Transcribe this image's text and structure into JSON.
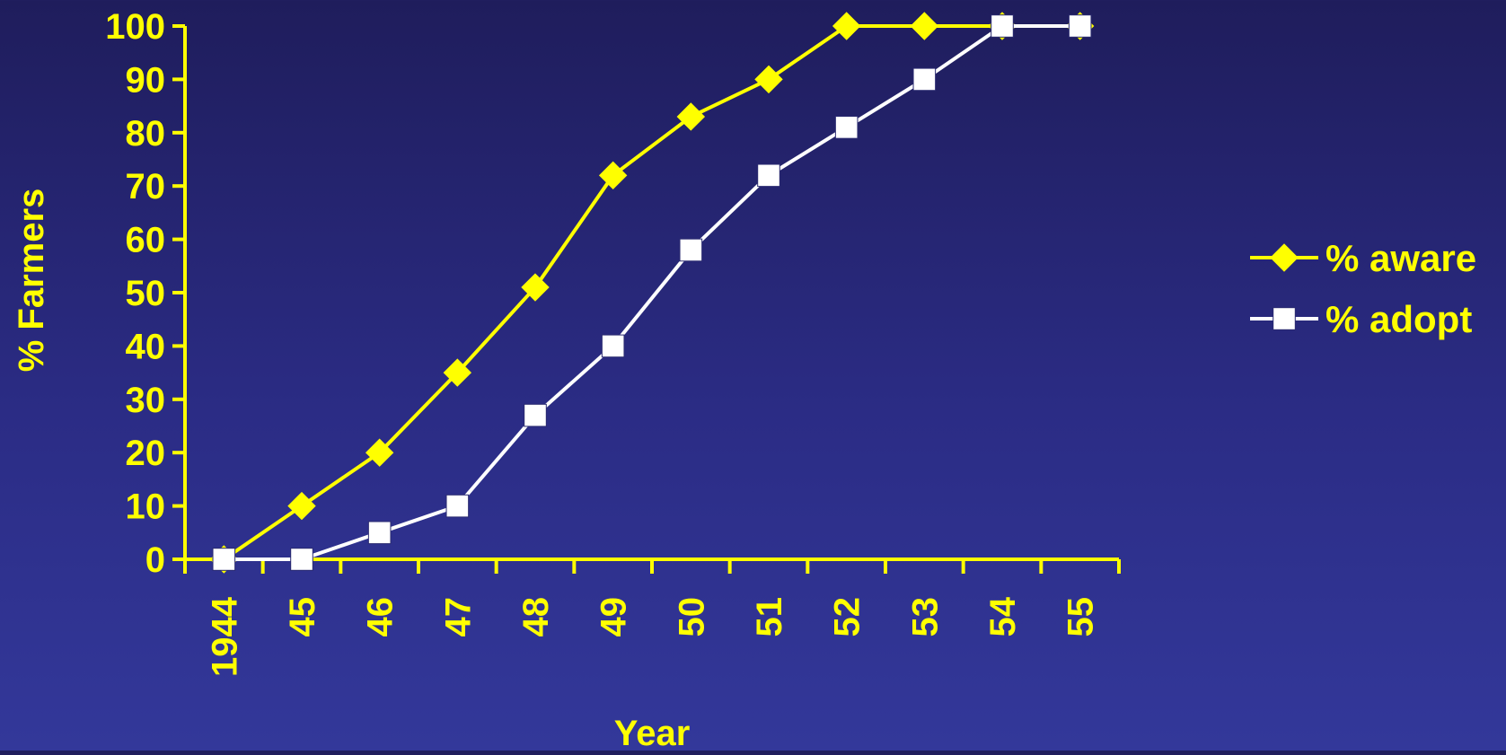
{
  "chart_data": {
    "type": "line",
    "title": "",
    "xlabel": "Year",
    "ylabel": "% Farmers",
    "categories": [
      "1944",
      "45",
      "46",
      "47",
      "48",
      "49",
      "50",
      "51",
      "52",
      "53",
      "54",
      "55"
    ],
    "ylim": [
      0,
      100
    ],
    "yticks": [
      "0",
      "10",
      "20",
      "30",
      "40",
      "50",
      "60",
      "70",
      "80",
      "90",
      "100"
    ],
    "grid": false,
    "legend_position": "right",
    "series": [
      {
        "name": "% aware",
        "marker": "diamond",
        "color": "#ffff00",
        "values": [
          0,
          10,
          20,
          35,
          51,
          72,
          83,
          90,
          100,
          100,
          100,
          100
        ]
      },
      {
        "name": "% adopt",
        "marker": "square",
        "color": "#ffffff",
        "values": [
          0,
          0,
          5,
          10,
          27,
          40,
          58,
          72,
          81,
          90,
          100,
          100
        ]
      }
    ]
  },
  "colors": {
    "axis": "#ffff00",
    "text": "#ffff00",
    "background_top": "#1f1d5c",
    "background_bottom": "#33389a"
  }
}
